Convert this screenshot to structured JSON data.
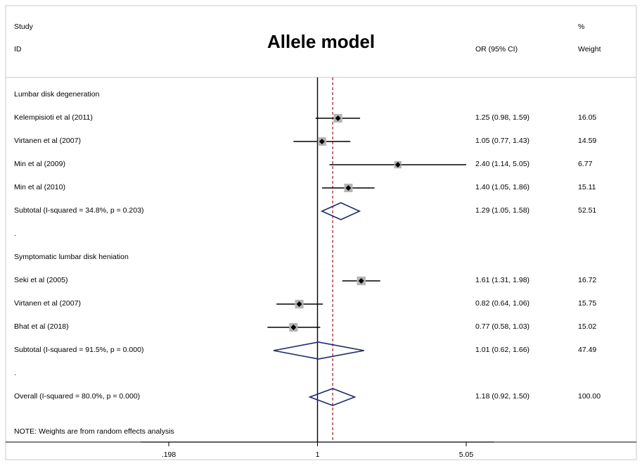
{
  "chart_data": {
    "type": "forest",
    "title": "Allele model",
    "header": {
      "study_line1": "Study",
      "study_line2": "ID",
      "or_label": "OR (95% CI)",
      "weight_line1": "%",
      "weight_line2": "Weight"
    },
    "rows": [
      {
        "kind": "group",
        "label": "Lumbar disk degeneration"
      },
      {
        "kind": "study",
        "label": "Kelempisioti et al (2011)",
        "or": 1.25,
        "lo": 0.98,
        "hi": 1.59,
        "ci_text": "1.25 (0.98, 1.59)",
        "weight": 16.05,
        "weight_text": "16.05"
      },
      {
        "kind": "study",
        "label": "Virtanen et al (2007)",
        "or": 1.05,
        "lo": 0.77,
        "hi": 1.43,
        "ci_text": "1.05 (0.77, 1.43)",
        "weight": 14.59,
        "weight_text": "14.59"
      },
      {
        "kind": "study",
        "label": "Min et al (2009)",
        "or": 2.4,
        "lo": 1.14,
        "hi": 5.05,
        "ci_text": "2.40 (1.14, 5.05)",
        "weight": 6.77,
        "weight_text": "6.77"
      },
      {
        "kind": "study",
        "label": "Min et al (2010)",
        "or": 1.4,
        "lo": 1.05,
        "hi": 1.86,
        "ci_text": "1.40 (1.05, 1.86)",
        "weight": 15.11,
        "weight_text": "15.11"
      },
      {
        "kind": "subtotal",
        "label": "Subtotal  (I-squared = 34.8%, p = 0.203)",
        "or": 1.29,
        "lo": 1.05,
        "hi": 1.58,
        "ci_text": "1.29 (1.05, 1.58)",
        "weight": 52.51,
        "weight_text": "52.51"
      },
      {
        "kind": "spacer",
        "label": "."
      },
      {
        "kind": "group",
        "label": "Symptomatic lumbar disk heniation"
      },
      {
        "kind": "study",
        "label": "Seki et al (2005)",
        "or": 1.61,
        "lo": 1.31,
        "hi": 1.98,
        "ci_text": "1.61 (1.31, 1.98)",
        "weight": 16.72,
        "weight_text": "16.72"
      },
      {
        "kind": "study",
        "label": "Virtanen et al (2007)",
        "or": 0.82,
        "lo": 0.64,
        "hi": 1.06,
        "ci_text": "0.82 (0.64, 1.06)",
        "weight": 15.75,
        "weight_text": "15.75"
      },
      {
        "kind": "study",
        "label": "Bhat et al (2018)",
        "or": 0.77,
        "lo": 0.58,
        "hi": 1.03,
        "ci_text": "0.77 (0.58, 1.03)",
        "weight": 15.02,
        "weight_text": "15.02"
      },
      {
        "kind": "subtotal",
        "label": "Subtotal  (I-squared = 91.5%, p = 0.000)",
        "or": 1.01,
        "lo": 0.62,
        "hi": 1.66,
        "ci_text": "1.01 (0.62, 1.66)",
        "weight": 47.49,
        "weight_text": "47.49"
      },
      {
        "kind": "spacer",
        "label": "."
      },
      {
        "kind": "overall",
        "label": "Overall  (I-squared = 80.0%, p = 0.000)",
        "or": 1.18,
        "lo": 0.92,
        "hi": 1.5,
        "ci_text": "1.18 (0.92, 1.50)",
        "weight": 100.0,
        "weight_text": "100.00"
      }
    ],
    "note": "NOTE: Weights are from random effects analysis",
    "x_scale": "log",
    "x_range": [
      0.198,
      5.05
    ],
    "x_ticks": [
      0.198,
      1,
      5.05
    ],
    "x_tick_labels": [
      ".198",
      "1",
      "5.05"
    ],
    "null_value": 1,
    "overall_line_value": 1.18,
    "colors": {
      "diamond": "#1f2a6e",
      "square": "#b4b4b4",
      "overall_line": "#a01818",
      "ink": "#000000",
      "rule": "#c8c8c8"
    }
  }
}
